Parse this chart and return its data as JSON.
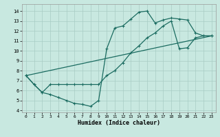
{
  "xlabel": "Humidex (Indice chaleur)",
  "bg_color": "#c8e8e0",
  "grid_color": "#a8ccc4",
  "line_color": "#1a6b60",
  "xlim": [
    -0.5,
    23.5
  ],
  "ylim": [
    3.8,
    14.7
  ],
  "xticks": [
    0,
    1,
    2,
    3,
    4,
    5,
    6,
    7,
    8,
    9,
    10,
    11,
    12,
    13,
    14,
    15,
    16,
    17,
    18,
    19,
    20,
    21,
    22,
    23
  ],
  "yticks": [
    4,
    5,
    6,
    7,
    8,
    9,
    10,
    11,
    12,
    13,
    14
  ],
  "line1_x": [
    0,
    1,
    2,
    3,
    4,
    5,
    6,
    7,
    8,
    9,
    10,
    11,
    12,
    13,
    14,
    15,
    16,
    17,
    18,
    19,
    20,
    21,
    22,
    23
  ],
  "line1_y": [
    7.5,
    6.6,
    5.8,
    5.6,
    5.3,
    5.0,
    4.7,
    4.6,
    4.4,
    5.0,
    10.2,
    12.3,
    12.5,
    13.2,
    13.9,
    14.0,
    12.8,
    13.1,
    13.3,
    13.2,
    13.1,
    11.8,
    11.5,
    11.5
  ],
  "line2_x": [
    0,
    1,
    2,
    3,
    4,
    5,
    6,
    7,
    8,
    9,
    10,
    11,
    12,
    13,
    14,
    15,
    16,
    17,
    18,
    19,
    20,
    21,
    22,
    23
  ],
  "line2_y": [
    7.5,
    6.6,
    5.8,
    6.6,
    6.6,
    6.6,
    6.6,
    6.6,
    6.6,
    6.6,
    7.5,
    8.0,
    8.8,
    9.8,
    10.5,
    11.3,
    11.8,
    12.5,
    13.0,
    10.2,
    10.3,
    11.3,
    11.5,
    11.5
  ],
  "line3_x": [
    0,
    23
  ],
  "line3_y": [
    7.5,
    11.5
  ]
}
